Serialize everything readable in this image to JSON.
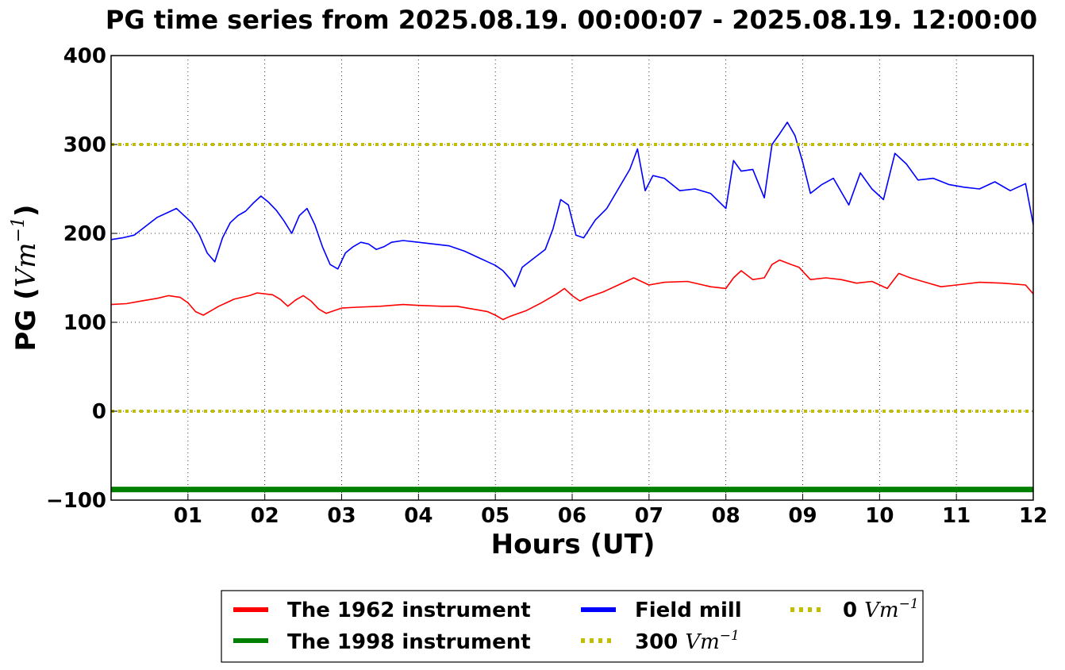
{
  "chart_data": {
    "type": "line",
    "title": "PG time series from 2025.08.19. 00:00:07 - 2025.08.19. 12:00:00",
    "xlabel": "Hours (UT)",
    "ylabel": "PG (",
    "ylabel_unit": "Vm",
    "ylabel_exp": "−1",
    "ylabel_close": ")",
    "xlim": [
      0,
      12
    ],
    "ylim": [
      -100,
      400
    ],
    "x_ticks": [
      1,
      2,
      3,
      4,
      5,
      6,
      7,
      8,
      9,
      10,
      11,
      12
    ],
    "x_tick_labels": [
      "01",
      "02",
      "03",
      "04",
      "05",
      "06",
      "07",
      "08",
      "09",
      "10",
      "11",
      "12"
    ],
    "y_ticks": [
      -100,
      0,
      100,
      200,
      300,
      400
    ],
    "y_tick_labels": [
      "−100",
      "0",
      "100",
      "200",
      "300",
      "400"
    ],
    "grid": true,
    "legend_position": "bottom-center-outside",
    "series": [
      {
        "name": "The 1962 instrument",
        "color": "#ff0000",
        "style": "solid",
        "points": [
          [
            0,
            120
          ],
          [
            0.2,
            121
          ],
          [
            0.4,
            124
          ],
          [
            0.6,
            127
          ],
          [
            0.75,
            130
          ],
          [
            0.9,
            128
          ],
          [
            1.0,
            122
          ],
          [
            1.1,
            112
          ],
          [
            1.2,
            108
          ],
          [
            1.3,
            113
          ],
          [
            1.4,
            118
          ],
          [
            1.5,
            122
          ],
          [
            1.6,
            126
          ],
          [
            1.7,
            128
          ],
          [
            1.8,
            130
          ],
          [
            1.9,
            133
          ],
          [
            2.0,
            132
          ],
          [
            2.1,
            131
          ],
          [
            2.2,
            126
          ],
          [
            2.3,
            118
          ],
          [
            2.4,
            125
          ],
          [
            2.5,
            130
          ],
          [
            2.6,
            124
          ],
          [
            2.7,
            115
          ],
          [
            2.8,
            110
          ],
          [
            2.9,
            113
          ],
          [
            3.0,
            116
          ],
          [
            3.2,
            117
          ],
          [
            3.5,
            118
          ],
          [
            3.8,
            120
          ],
          [
            4.0,
            119
          ],
          [
            4.3,
            118
          ],
          [
            4.5,
            118
          ],
          [
            4.7,
            115
          ],
          [
            4.9,
            112
          ],
          [
            5.0,
            108
          ],
          [
            5.1,
            103
          ],
          [
            5.2,
            107
          ],
          [
            5.4,
            113
          ],
          [
            5.6,
            122
          ],
          [
            5.8,
            132
          ],
          [
            5.9,
            138
          ],
          [
            6.0,
            130
          ],
          [
            6.1,
            124
          ],
          [
            6.2,
            128
          ],
          [
            6.4,
            134
          ],
          [
            6.6,
            142
          ],
          [
            6.8,
            150
          ],
          [
            7.0,
            142
          ],
          [
            7.2,
            145
          ],
          [
            7.5,
            146
          ],
          [
            7.8,
            140
          ],
          [
            8.0,
            138
          ],
          [
            8.1,
            150
          ],
          [
            8.2,
            158
          ],
          [
            8.35,
            148
          ],
          [
            8.5,
            150
          ],
          [
            8.6,
            165
          ],
          [
            8.7,
            170
          ],
          [
            8.85,
            165
          ],
          [
            8.95,
            162
          ],
          [
            9.1,
            148
          ],
          [
            9.3,
            150
          ],
          [
            9.5,
            148
          ],
          [
            9.7,
            144
          ],
          [
            9.9,
            146
          ],
          [
            10.1,
            138
          ],
          [
            10.25,
            155
          ],
          [
            10.4,
            150
          ],
          [
            10.6,
            145
          ],
          [
            10.8,
            140
          ],
          [
            11.0,
            142
          ],
          [
            11.3,
            145
          ],
          [
            11.6,
            144
          ],
          [
            11.9,
            142
          ],
          [
            12.0,
            132
          ]
        ]
      },
      {
        "name": "The 1998 instrument",
        "color": "#008000",
        "style": "solid",
        "points": [
          [
            0,
            -88
          ],
          [
            12,
            -88
          ]
        ]
      },
      {
        "name": "Field mill",
        "color": "#0000ff",
        "style": "solid",
        "points": [
          [
            0,
            193
          ],
          [
            0.15,
            195
          ],
          [
            0.3,
            198
          ],
          [
            0.45,
            208
          ],
          [
            0.6,
            218
          ],
          [
            0.75,
            224
          ],
          [
            0.85,
            228
          ],
          [
            0.95,
            220
          ],
          [
            1.05,
            212
          ],
          [
            1.15,
            198
          ],
          [
            1.25,
            178
          ],
          [
            1.35,
            168
          ],
          [
            1.45,
            195
          ],
          [
            1.55,
            212
          ],
          [
            1.65,
            220
          ],
          [
            1.75,
            225
          ],
          [
            1.85,
            234
          ],
          [
            1.95,
            242
          ],
          [
            2.05,
            235
          ],
          [
            2.15,
            226
          ],
          [
            2.25,
            214
          ],
          [
            2.35,
            200
          ],
          [
            2.45,
            220
          ],
          [
            2.55,
            228
          ],
          [
            2.65,
            210
          ],
          [
            2.75,
            185
          ],
          [
            2.85,
            165
          ],
          [
            2.95,
            160
          ],
          [
            3.05,
            178
          ],
          [
            3.15,
            185
          ],
          [
            3.25,
            190
          ],
          [
            3.35,
            188
          ],
          [
            3.45,
            182
          ],
          [
            3.55,
            185
          ],
          [
            3.65,
            190
          ],
          [
            3.8,
            192
          ],
          [
            4.0,
            190
          ],
          [
            4.2,
            188
          ],
          [
            4.4,
            186
          ],
          [
            4.6,
            180
          ],
          [
            4.8,
            172
          ],
          [
            4.9,
            168
          ],
          [
            5.0,
            164
          ],
          [
            5.1,
            158
          ],
          [
            5.2,
            148
          ],
          [
            5.25,
            140
          ],
          [
            5.35,
            162
          ],
          [
            5.5,
            172
          ],
          [
            5.65,
            182
          ],
          [
            5.75,
            205
          ],
          [
            5.85,
            238
          ],
          [
            5.95,
            232
          ],
          [
            6.05,
            198
          ],
          [
            6.15,
            195
          ],
          [
            6.3,
            215
          ],
          [
            6.45,
            228
          ],
          [
            6.6,
            250
          ],
          [
            6.75,
            272
          ],
          [
            6.85,
            295
          ],
          [
            6.95,
            248
          ],
          [
            7.05,
            265
          ],
          [
            7.2,
            262
          ],
          [
            7.4,
            248
          ],
          [
            7.6,
            250
          ],
          [
            7.8,
            245
          ],
          [
            8.0,
            228
          ],
          [
            8.1,
            282
          ],
          [
            8.2,
            270
          ],
          [
            8.35,
            272
          ],
          [
            8.5,
            240
          ],
          [
            8.6,
            300
          ],
          [
            8.7,
            312
          ],
          [
            8.8,
            325
          ],
          [
            8.9,
            310
          ],
          [
            9.0,
            280
          ],
          [
            9.1,
            245
          ],
          [
            9.25,
            255
          ],
          [
            9.4,
            262
          ],
          [
            9.6,
            232
          ],
          [
            9.75,
            268
          ],
          [
            9.9,
            250
          ],
          [
            10.05,
            238
          ],
          [
            10.2,
            290
          ],
          [
            10.35,
            278
          ],
          [
            10.5,
            260
          ],
          [
            10.7,
            262
          ],
          [
            10.9,
            255
          ],
          [
            11.1,
            252
          ],
          [
            11.3,
            250
          ],
          [
            11.5,
            258
          ],
          [
            11.7,
            248
          ],
          [
            11.9,
            256
          ],
          [
            12.0,
            210
          ]
        ]
      },
      {
        "name": "300",
        "name_unit": "Vm",
        "name_exp": "−1",
        "color": "#bfbf00",
        "style": "dotted",
        "points": [
          [
            0,
            300
          ],
          [
            12,
            300
          ]
        ]
      },
      {
        "name": "0",
        "name_unit": "Vm",
        "name_exp": "−1",
        "color": "#bfbf00",
        "style": "dotted",
        "points": [
          [
            0,
            0
          ],
          [
            12,
            0
          ]
        ]
      }
    ]
  }
}
